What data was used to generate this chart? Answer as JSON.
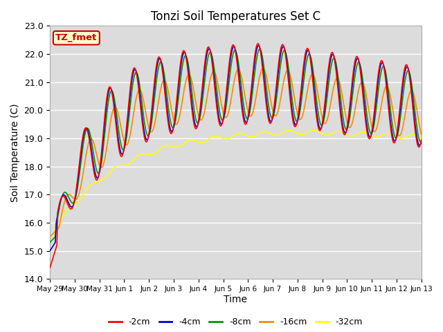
{
  "title": "Tonzi Soil Temperatures Set C",
  "xlabel": "Time",
  "ylabel": "Soil Temperature (C)",
  "ylim": [
    14.0,
    23.0
  ],
  "yticks": [
    14.0,
    15.0,
    16.0,
    17.0,
    18.0,
    19.0,
    20.0,
    21.0,
    22.0,
    23.0
  ],
  "xtick_labels": [
    "May 29",
    "May 30",
    "May 31",
    "Jun 1",
    "Jun 2",
    "Jun 3",
    "Jun 4",
    "Jun 5",
    "Jun 6",
    "Jun 7",
    "Jun 8",
    "Jun 9",
    "Jun 10",
    "Jun 11",
    "Jun 12",
    "Jun 13"
  ],
  "colors": {
    "-2cm": "#ff0000",
    "-4cm": "#0000cc",
    "-8cm": "#009900",
    "-16cm": "#ff8800",
    "-32cm": "#ffff00"
  },
  "label_box_text": "TZ_fmet",
  "label_box_color": "#ffffcc",
  "label_box_edge": "#cc0000",
  "plot_bg": "#dcdcdc",
  "n_points": 480
}
